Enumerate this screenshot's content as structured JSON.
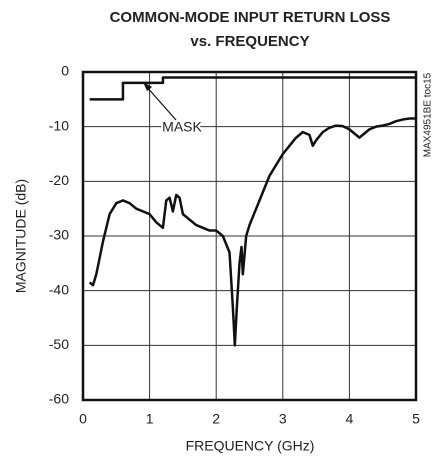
{
  "chart_data": {
    "type": "line",
    "title": [
      "COMMON-MODE INPUT RETURN LOSS",
      "vs. FREQUENCY"
    ],
    "xlabel": "FREQUENCY (GHz)",
    "ylabel": "MAGNITUDE (dB)",
    "annotation": "MASK",
    "note": "MAX4951BE toc15",
    "xlim": [
      0,
      5
    ],
    "xticks": [
      0,
      1,
      2,
      3,
      4,
      5
    ],
    "ylim": [
      -60,
      0
    ],
    "yticks": [
      0,
      -10,
      -20,
      -30,
      -40,
      -50,
      -60
    ],
    "grid": true,
    "series": [
      {
        "color": "#111111",
        "x": [
          0.1,
          0.6,
          0.6,
          1.2,
          1.2,
          5
        ],
        "values": [
          -5,
          -5,
          -2,
          -2,
          -1,
          -1
        ]
      },
      {
        "color": "#111111",
        "x": [
          0.1,
          0.15,
          0.2,
          0.3,
          0.4,
          0.5,
          0.6,
          0.7,
          0.8,
          0.9,
          1.0,
          1.1,
          1.2,
          1.25,
          1.3,
          1.35,
          1.4,
          1.45,
          1.5,
          1.6,
          1.7,
          1.8,
          1.9,
          2.0,
          2.1,
          2.2,
          2.25,
          2.28,
          2.31,
          2.35,
          2.38,
          2.4,
          2.45,
          2.5,
          2.6,
          2.7,
          2.8,
          2.9,
          3.0,
          3.1,
          3.2,
          3.3,
          3.4,
          3.45,
          3.5,
          3.6,
          3.7,
          3.8,
          3.9,
          4.0,
          4.1,
          4.15,
          4.2,
          4.3,
          4.4,
          4.5,
          4.6,
          4.7,
          4.8,
          4.9,
          5.0
        ],
        "values": [
          -38.5,
          -39,
          -37,
          -31,
          -26,
          -24,
          -23.5,
          -24,
          -25,
          -25.5,
          -26,
          -27.5,
          -28.5,
          -23.5,
          -23,
          -25.5,
          -22.5,
          -23,
          -26,
          -27,
          -28,
          -28.5,
          -29,
          -29,
          -30,
          -33,
          -43,
          -50,
          -43,
          -35,
          -32,
          -37,
          -30,
          -28,
          -25,
          -22,
          -19,
          -17,
          -15,
          -13.5,
          -12,
          -11,
          -11.5,
          -13.5,
          -12.5,
          -11,
          -10.2,
          -9.8,
          -9.9,
          -10.5,
          -11.5,
          -12,
          -11.5,
          -10.5,
          -10,
          -9.8,
          -9.5,
          -9,
          -8.7,
          -8.5,
          -8.5
        ]
      }
    ]
  }
}
